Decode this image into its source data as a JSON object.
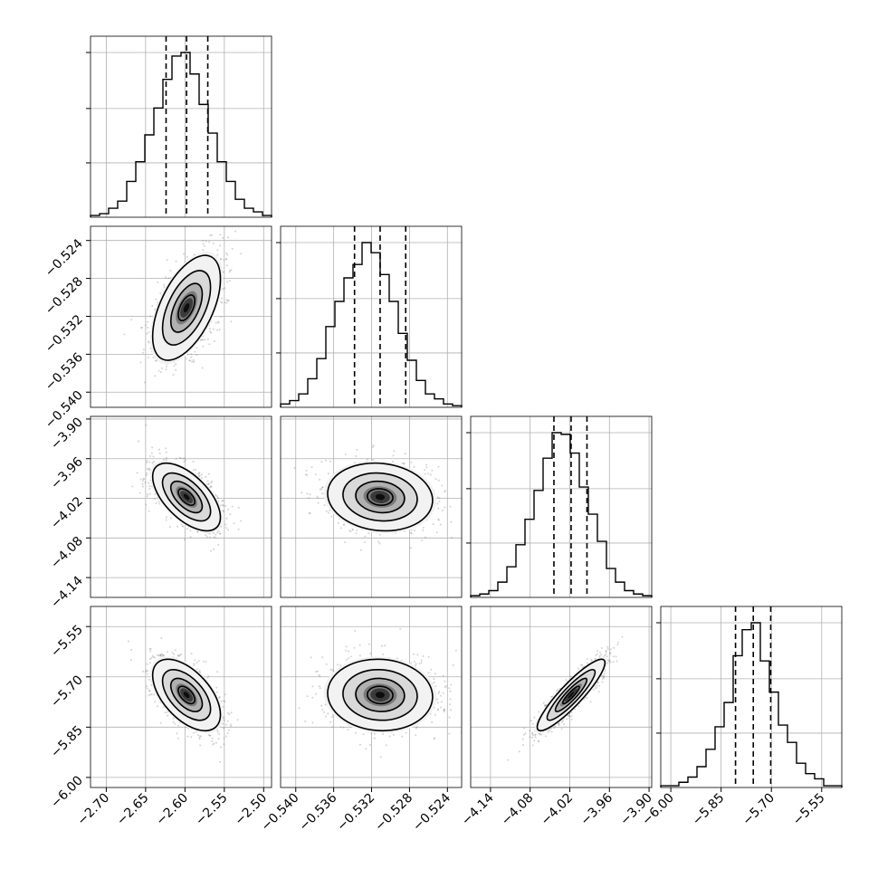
{
  "chart_data": {
    "type": "corner",
    "grid": true,
    "parameters": [
      {
        "range": [
          -2.72,
          -2.49
        ],
        "ticks": [
          -2.7,
          -2.65,
          -2.6,
          -2.55,
          -2.5
        ],
        "tick_labels": [
          "−2.70",
          "−2.65",
          "−2.60",
          "−2.55",
          "−2.50"
        ]
      },
      {
        "range": [
          -0.5416,
          -0.5225
        ],
        "ticks": [
          -0.54,
          -0.536,
          -0.532,
          -0.528,
          -0.524
        ],
        "tick_labels": [
          "−0.540",
          "−0.536",
          "−0.532",
          "−0.528",
          "−0.524"
        ]
      },
      {
        "range": [
          -4.17,
          -3.896
        ],
        "ticks": [
          -4.14,
          -4.08,
          -4.02,
          -3.96,
          -3.9
        ],
        "tick_labels": [
          "−4.14",
          "−4.08",
          "−4.02",
          "−3.96",
          "−3.90"
        ]
      },
      {
        "range": [
          -6.03,
          -5.49
        ],
        "ticks": [
          -6.0,
          -5.85,
          -5.7,
          -5.55
        ],
        "tick_labels": [
          "−6.00",
          "−5.85",
          "−5.70",
          "−5.55"
        ]
      }
    ],
    "histograms": [
      {
        "bins": 20,
        "counts": [
          1,
          2,
          5,
          9,
          20,
          31,
          46,
          61,
          77,
          90,
          92,
          80,
          63,
          47,
          31,
          20,
          10,
          5,
          3,
          1
        ],
        "quantiles": [
          -2.624,
          -2.598,
          -2.571
        ]
      },
      {
        "bins": 20,
        "counts": [
          2,
          4,
          8,
          17,
          29,
          48,
          63,
          77,
          85,
          98,
          92,
          79,
          63,
          44,
          28,
          16,
          8,
          5,
          2,
          1
        ],
        "quantiles": [
          -0.5338,
          -0.5311,
          -0.5284
        ]
      },
      {
        "bins": 20,
        "counts": [
          1,
          2,
          4,
          9,
          18,
          31,
          46,
          63,
          82,
          97,
          96,
          85,
          65,
          49,
          33,
          17,
          9,
          4,
          2,
          1
        ],
        "quantiles": [
          -4.044,
          -4.018,
          -3.994
        ]
      },
      {
        "bins": 20,
        "counts": [
          1,
          1,
          3,
          6,
          12,
          22,
          35,
          49,
          76,
          91,
          95,
          73,
          55,
          36,
          26,
          14,
          8,
          5,
          1,
          1
        ],
        "quantiles": [
          -5.807,
          -5.754,
          -5.702
        ]
      }
    ],
    "pairs": [
      {
        "x_param": 0,
        "y_param": 1,
        "center": [
          -2.598,
          -0.5311
        ],
        "sd": [
          0.021,
          0.0027
        ],
        "corr": 0.55
      },
      {
        "x_param": 0,
        "y_param": 2,
        "center": [
          -2.598,
          -4.018
        ],
        "sd": [
          0.021,
          0.025
        ],
        "corr": -0.6
      },
      {
        "x_param": 1,
        "y_param": 2,
        "center": [
          -0.5311,
          -4.018
        ],
        "sd": [
          0.0027,
          0.025
        ],
        "corr": -0.1
      },
      {
        "x_param": 0,
        "y_param": 3,
        "center": [
          -2.598,
          -5.754
        ],
        "sd": [
          0.021,
          0.052
        ],
        "corr": -0.55
      },
      {
        "x_param": 1,
        "y_param": 3,
        "center": [
          -0.5311,
          -5.754
        ],
        "sd": [
          0.0027,
          0.052
        ],
        "corr": -0.05
      },
      {
        "x_param": 2,
        "y_param": 3,
        "center": [
          -4.018,
          -5.754
        ],
        "sd": [
          0.025,
          0.052
        ],
        "corr": 0.9
      }
    ],
    "contour_levels_sigma": [
      0.5,
      1.0,
      1.5,
      2.0
    ]
  }
}
